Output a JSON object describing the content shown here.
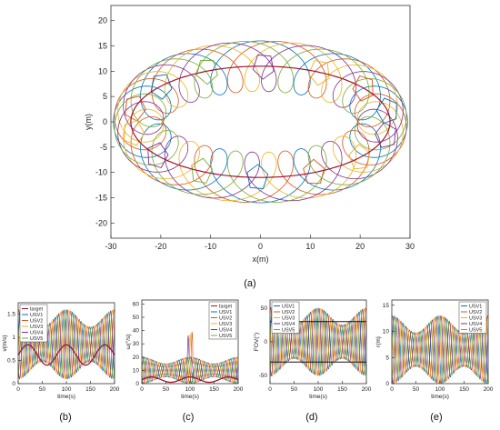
{
  "colors": {
    "target": "#a2142f",
    "usv": [
      "#0072bd",
      "#d95319",
      "#edb120",
      "#7e2f8e",
      "#77ac30"
    ]
  },
  "chart_data": [
    {
      "id": "a",
      "type": "line",
      "panel_label": "(a)",
      "xlabel": "x(m)",
      "ylabel": "y(m)",
      "xlim": [
        -30,
        30
      ],
      "ylim": [
        -23,
        23
      ],
      "xticks": [
        -30,
        -20,
        -10,
        0,
        10,
        20,
        30
      ],
      "yticks": [
        -20,
        -15,
        -10,
        -5,
        0,
        5,
        10,
        15,
        20
      ],
      "series": [
        {
          "kind": "target-ellipse",
          "a": 26,
          "b": 11
        },
        {
          "kind": "usv-orbits",
          "count": 5,
          "center_radius": 27.5,
          "center_radius_y": 12,
          "loop_radius": 5
        }
      ]
    },
    {
      "id": "b",
      "type": "line",
      "panel_label": "(b)",
      "xlabel": "time(s)",
      "ylabel": "v(m/s)",
      "xlim": [
        0,
        200
      ],
      "ylim": [
        0,
        1.75
      ],
      "xticks": [
        0,
        50,
        100,
        150,
        200
      ],
      "yticks": [
        0,
        0.5,
        1,
        1.5
      ],
      "legend": [
        "target",
        "USV1",
        "USV2",
        "USV3",
        "USV4",
        "USV5"
      ],
      "series": [
        {
          "name": "target",
          "mean": 0.62,
          "amp": 0.22,
          "period": 80
        },
        {
          "name": "USV1",
          "mean": 0.85,
          "amp": 0.75,
          "period": 18
        },
        {
          "name": "USV2",
          "mean": 0.85,
          "amp": 0.75,
          "period": 18
        },
        {
          "name": "USV3",
          "mean": 0.85,
          "amp": 0.75,
          "period": 18
        },
        {
          "name": "USV4",
          "mean": 0.85,
          "amp": 0.75,
          "period": 18
        },
        {
          "name": "USV5",
          "mean": 0.85,
          "amp": 0.75,
          "period": 18
        }
      ]
    },
    {
      "id": "c",
      "type": "line",
      "panel_label": "(c)",
      "xlabel": "time(s)",
      "ylabel": "ω(°/s)",
      "xlim": [
        0,
        200
      ],
      "ylim": [
        0,
        63
      ],
      "xticks": [
        0,
        50,
        100,
        150,
        200
      ],
      "yticks": [
        0,
        10,
        20,
        30,
        40,
        50,
        60
      ],
      "legend": [
        "target",
        "USV1",
        "USV2",
        "USV3",
        "USV4",
        "USV5"
      ],
      "series": [
        {
          "name": "target",
          "mean": 3,
          "amp": 2,
          "period": 80
        },
        {
          "name": "USV1",
          "mean": 10,
          "amp": 10,
          "period": 18
        },
        {
          "name": "USV2",
          "mean": 10,
          "amp": 10,
          "period": 18
        },
        {
          "name": "USV3",
          "mean": 10,
          "amp": 10,
          "period": 18
        },
        {
          "name": "USV4",
          "mean": 10,
          "amp": 10,
          "period": 18
        },
        {
          "name": "USV5",
          "mean": 10,
          "amp": 10,
          "period": 18
        }
      ]
    },
    {
      "id": "d",
      "type": "line",
      "panel_label": "(d)",
      "xlabel": "time(s)",
      "ylabel": "FOV(°)",
      "xlim": [
        0,
        200
      ],
      "ylim": [
        -62,
        62
      ],
      "xticks": [
        0,
        50,
        100,
        150,
        200
      ],
      "yticks": [
        -50,
        0,
        50
      ],
      "reference_lines": [
        30,
        -30
      ],
      "legend": [
        "USV1",
        "USV2",
        "USV3",
        "USV4",
        "USV5"
      ],
      "series": [
        {
          "name": "USV1",
          "mean": 0,
          "amp": 50,
          "period": 18
        },
        {
          "name": "USV2",
          "mean": 0,
          "amp": 50,
          "period": 18
        },
        {
          "name": "USV3",
          "mean": 0,
          "amp": 50,
          "period": 18
        },
        {
          "name": "USV4",
          "mean": 0,
          "amp": 50,
          "period": 18
        },
        {
          "name": "USV5",
          "mean": 0,
          "amp": 50,
          "period": 18
        }
      ]
    },
    {
      "id": "e",
      "type": "line",
      "panel_label": "(e)",
      "xlabel": "time(s)",
      "ylabel": "r(m)",
      "xlim": [
        0,
        200
      ],
      "ylim": [
        0,
        16
      ],
      "xticks": [
        0,
        50,
        100,
        150,
        200
      ],
      "yticks": [
        0,
        5,
        10,
        15
      ],
      "legend": [
        "USV1",
        "USV2",
        "USV3",
        "USV4",
        "USV5"
      ],
      "series": [
        {
          "name": "USV1",
          "mean": 6.5,
          "amp": 6.5,
          "period": 18
        },
        {
          "name": "USV2",
          "mean": 6.5,
          "amp": 6.5,
          "period": 18
        },
        {
          "name": "USV3",
          "mean": 6.5,
          "amp": 6.5,
          "period": 18
        },
        {
          "name": "USV4",
          "mean": 6.5,
          "amp": 6.5,
          "period": 18
        },
        {
          "name": "USV5",
          "mean": 6.5,
          "amp": 6.5,
          "period": 18
        }
      ]
    }
  ]
}
